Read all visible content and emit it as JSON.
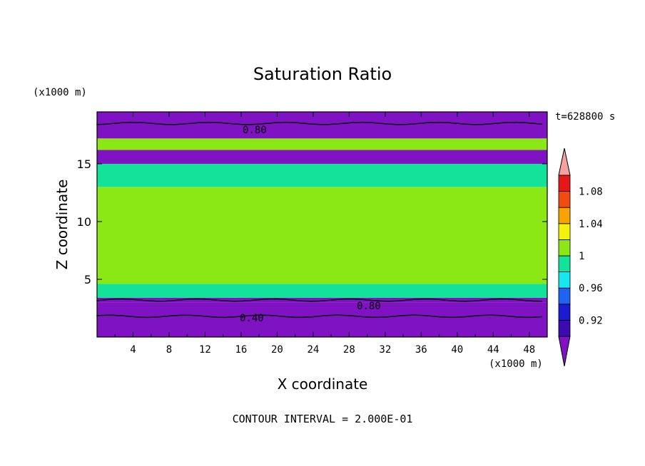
{
  "chart_data": {
    "type": "heatmap",
    "title": "Saturation Ratio",
    "xlabel": "X coordinate",
    "ylabel": "Z coordinate",
    "x_unit": "(x1000 m)",
    "y_unit": "(x1000 m)",
    "time_label": "t=628800 s",
    "footer": "CONTOUR INTERVAL = 2.000E-01",
    "xlim": [
      0,
      50
    ],
    "ylim": [
      0,
      19.5
    ],
    "x_ticks": [
      "4",
      "8",
      "12",
      "16",
      "20",
      "24",
      "28",
      "32",
      "36",
      "40",
      "44",
      "48"
    ],
    "y_ticks": [
      "5",
      "10",
      "15"
    ],
    "contour_labels": [
      "0.80",
      "0.80",
      "0.40"
    ],
    "colorbar": {
      "tick_labels": [
        "0.92",
        "0.96",
        "1",
        "1.04",
        "1.08"
      ],
      "levels": [
        0.9,
        0.92,
        0.94,
        0.96,
        0.98,
        1.0,
        1.02,
        1.04,
        1.06,
        1.08,
        1.1
      ],
      "colors": [
        "#7f12c3",
        "#3a0cb0",
        "#1b1bd6",
        "#1f63f0",
        "#18e6f0",
        "#13e39a",
        "#8be814",
        "#f2f20c",
        "#f7a300",
        "#f34a12",
        "#e41818",
        "#f7a0a0"
      ]
    },
    "bands": [
      {
        "z0": 0,
        "z1": 3.0,
        "color": "#7f12c3"
      },
      {
        "z0": 3.0,
        "z1": 3.4,
        "color": "#7f12c3"
      },
      {
        "z0": 3.4,
        "z1": 4.6,
        "color": "#13e39a"
      },
      {
        "z0": 4.6,
        "z1": 13.0,
        "color": "#8be814"
      },
      {
        "z0": 13.0,
        "z1": 15.0,
        "color": "#13e39a"
      },
      {
        "z0": 15.0,
        "z1": 16.2,
        "color": "#7f12c3"
      },
      {
        "z0": 16.2,
        "z1": 17.2,
        "color": "#8be814"
      },
      {
        "z0": 17.2,
        "z1": 19.5,
        "color": "#7f12c3"
      }
    ],
    "contour_lines": [
      {
        "level": 0.8,
        "z": 18.5
      },
      {
        "level": 0.8,
        "z": 3.2
      },
      {
        "level": 0.4,
        "z": 1.8
      }
    ]
  }
}
